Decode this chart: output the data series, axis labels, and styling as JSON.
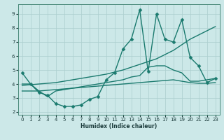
{
  "xlabel": "Humidex (Indice chaleur)",
  "xlim": [
    -0.5,
    23.5
  ],
  "ylim": [
    1.8,
    9.7
  ],
  "xticks": [
    0,
    1,
    2,
    3,
    4,
    5,
    6,
    7,
    8,
    9,
    10,
    11,
    12,
    13,
    14,
    15,
    16,
    17,
    18,
    19,
    20,
    21,
    22,
    23
  ],
  "yticks": [
    2,
    3,
    4,
    5,
    6,
    7,
    8,
    9
  ],
  "bg_color": "#cce8e8",
  "line_color": "#1a7a6e",
  "grid_color": "#aacece",
  "lines": [
    {
      "x": [
        0,
        1,
        2,
        3,
        4,
        5,
        6,
        7,
        8,
        9,
        10,
        11,
        12,
        13,
        14,
        15,
        16,
        17,
        18,
        19,
        20,
        21,
        22,
        23
      ],
      "y": [
        4.8,
        4.0,
        3.4,
        3.2,
        2.6,
        2.4,
        2.4,
        2.5,
        2.9,
        3.1,
        4.3,
        4.8,
        6.5,
        7.2,
        9.3,
        4.9,
        9.0,
        7.2,
        7.0,
        8.6,
        5.9,
        5.3,
        4.1,
        4.4
      ],
      "marker": "D",
      "markersize": 2.5,
      "linewidth": 1.0
    },
    {
      "x": [
        0,
        1,
        2,
        3,
        4,
        5,
        6,
        7,
        8,
        9,
        10,
        11,
        12,
        13,
        14,
        15,
        16,
        17,
        18,
        19,
        20,
        21,
        22,
        23
      ],
      "y": [
        3.9,
        3.95,
        4.0,
        4.05,
        4.1,
        4.2,
        4.3,
        4.4,
        4.5,
        4.6,
        4.7,
        4.85,
        5.0,
        5.2,
        5.4,
        5.6,
        5.8,
        6.1,
        6.4,
        6.8,
        7.2,
        7.5,
        7.8,
        8.1
      ],
      "marker": null,
      "markersize": 0,
      "linewidth": 1.0
    },
    {
      "x": [
        0,
        1,
        2,
        3,
        4,
        5,
        6,
        7,
        8,
        9,
        10,
        11,
        12,
        13,
        14,
        15,
        16,
        17,
        18,
        19,
        20,
        21,
        22,
        23
      ],
      "y": [
        4.0,
        4.0,
        3.5,
        3.1,
        3.5,
        3.6,
        3.7,
        3.8,
        3.9,
        4.0,
        4.1,
        4.2,
        4.3,
        4.5,
        4.6,
        5.2,
        5.3,
        5.3,
        5.0,
        4.8,
        4.2,
        4.2,
        4.3,
        4.4
      ],
      "marker": null,
      "markersize": 0,
      "linewidth": 1.0
    },
    {
      "x": [
        0,
        1,
        2,
        3,
        4,
        5,
        6,
        7,
        8,
        9,
        10,
        11,
        12,
        13,
        14,
        15,
        16,
        17,
        18,
        19,
        20,
        21,
        22,
        23
      ],
      "y": [
        3.5,
        3.5,
        3.5,
        3.55,
        3.6,
        3.65,
        3.7,
        3.75,
        3.8,
        3.85,
        3.9,
        3.95,
        4.0,
        4.05,
        4.1,
        4.15,
        4.2,
        4.25,
        4.3,
        4.2,
        4.1,
        4.05,
        4.05,
        4.1
      ],
      "marker": null,
      "markersize": 0,
      "linewidth": 1.0
    }
  ]
}
